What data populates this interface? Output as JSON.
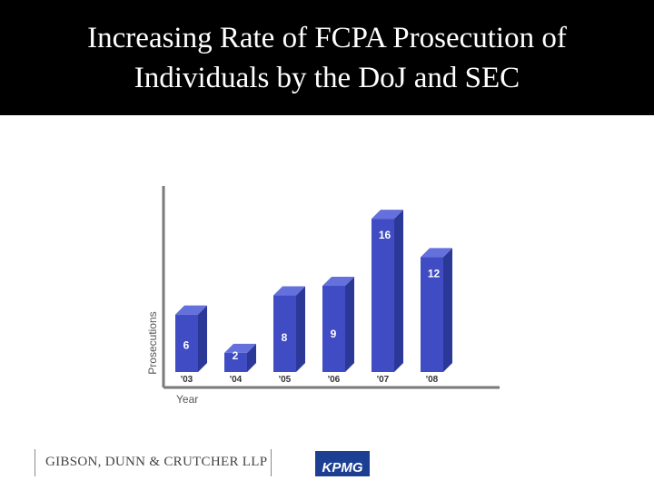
{
  "title": {
    "line1": "Increasing Rate of FCPA Prosecution of",
    "line2": "Individuals by the DoJ and SEC"
  },
  "chart_data": {
    "type": "bar",
    "style": "3d",
    "categories": [
      "'03",
      "'04",
      "'05",
      "'06",
      "'07",
      "'08"
    ],
    "values": [
      6,
      2,
      8,
      9,
      16,
      12
    ],
    "data_labels": [
      "6",
      "2",
      "8",
      "9",
      "16",
      "12"
    ],
    "xlabel": "Year",
    "ylabel": "Prosecutions",
    "ylim": [
      0,
      18
    ],
    "grid": false,
    "legend": "none",
    "colors": {
      "bar_front": "#3f4cc4",
      "bar_side": "#2c3898",
      "bar_top": "#6470dc",
      "axis": "#7a7a7a",
      "label": "#ffffff",
      "tick": "#333333"
    }
  },
  "footer": {
    "left_logo": "GIBSON, DUNN & CRUTCHER LLP",
    "right_logo": "KPMG"
  }
}
